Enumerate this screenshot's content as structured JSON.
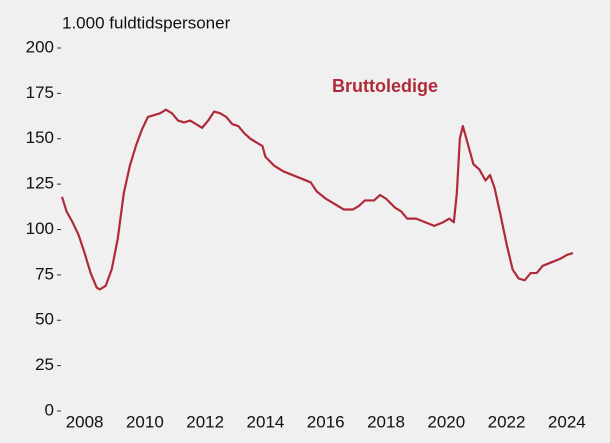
{
  "chart_data": {
    "type": "line",
    "y_label": "1.000 fuldtidspersoner",
    "annotation": "Bruttoledige",
    "xlim": [
      2007.25,
      2025.1
    ],
    "xticks": [
      2008,
      2010,
      2012,
      2014,
      2016,
      2018,
      2020,
      2022,
      2024
    ],
    "ylim": [
      0,
      200
    ],
    "yticks": [
      0,
      25,
      50,
      75,
      100,
      125,
      150,
      175,
      200
    ],
    "grid": false,
    "series": [
      {
        "name": "Bruttoledige",
        "color": "#b02a3a",
        "x": [
          2007.25,
          2007.4,
          2007.6,
          2007.8,
          2008.0,
          2008.2,
          2008.4,
          2008.5,
          2008.7,
          2008.9,
          2009.1,
          2009.3,
          2009.5,
          2009.7,
          2009.9,
          2010.1,
          2010.3,
          2010.5,
          2010.7,
          2010.9,
          2011.1,
          2011.3,
          2011.5,
          2011.7,
          2011.9,
          2012.1,
          2012.3,
          2012.5,
          2012.7,
          2012.9,
          2013.1,
          2013.3,
          2013.5,
          2013.7,
          2013.9,
          2014.0,
          2014.3,
          2014.6,
          2014.9,
          2015.2,
          2015.5,
          2015.7,
          2016.0,
          2016.3,
          2016.6,
          2016.9,
          2017.1,
          2017.3,
          2017.6,
          2017.8,
          2018.0,
          2018.3,
          2018.5,
          2018.7,
          2019.0,
          2019.3,
          2019.6,
          2019.9,
          2020.1,
          2020.25,
          2020.35,
          2020.45,
          2020.55,
          2020.7,
          2020.9,
          2021.1,
          2021.3,
          2021.45,
          2021.6,
          2021.8,
          2022.0,
          2022.2,
          2022.4,
          2022.6,
          2022.8,
          2023.0,
          2023.2,
          2023.5,
          2023.8,
          2024.0,
          2024.2
        ],
        "values": [
          118,
          110,
          104,
          97,
          87,
          76,
          68,
          67,
          69,
          78,
          95,
          120,
          135,
          146,
          155,
          162,
          163,
          164,
          166,
          164,
          160,
          159,
          160,
          158,
          156,
          160,
          165,
          164,
          162,
          158,
          157,
          153,
          150,
          148,
          146,
          140,
          135,
          132,
          130,
          128,
          126,
          121,
          117,
          114,
          111,
          111,
          113,
          116,
          116,
          119,
          117,
          112,
          110,
          106,
          106,
          104,
          102,
          104,
          106,
          104,
          120,
          150,
          157,
          148,
          136,
          133,
          127,
          130,
          123,
          108,
          92,
          78,
          73,
          72,
          76,
          76,
          80,
          82,
          84,
          86,
          87
        ]
      }
    ]
  }
}
